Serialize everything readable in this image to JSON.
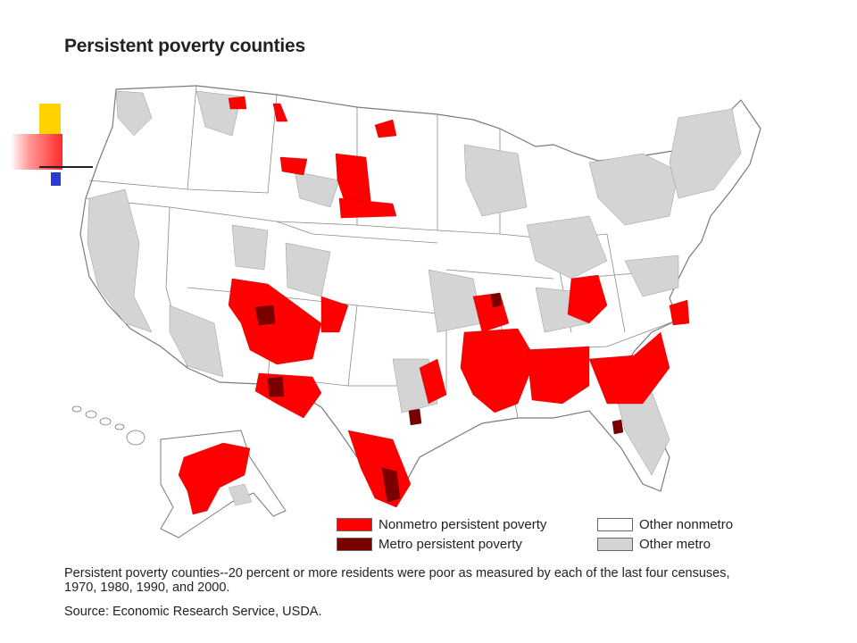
{
  "title": "Persistent poverty counties",
  "legend": {
    "items": [
      {
        "label": "Nonmetro persistent poverty",
        "color": "#ff0000"
      },
      {
        "label": "Metro persistent poverty",
        "color": "#7a0000"
      },
      {
        "label": "Other nonmetro",
        "color": "#ffffff"
      },
      {
        "label": "Other metro",
        "color": "#d4d4d4"
      }
    ]
  },
  "footnote": "Persistent poverty counties--20 percent or more residents were poor as measured by each of the last four censuses, 1970, 1980, 1990, and 2000.",
  "source": "Source: Economic Research Service, USDA.",
  "colors": {
    "nonmetro_persistent": "#ff0000",
    "metro_persistent": "#7a0000",
    "other_metro": "#d4d4d4",
    "border": "#8a8a8a"
  }
}
